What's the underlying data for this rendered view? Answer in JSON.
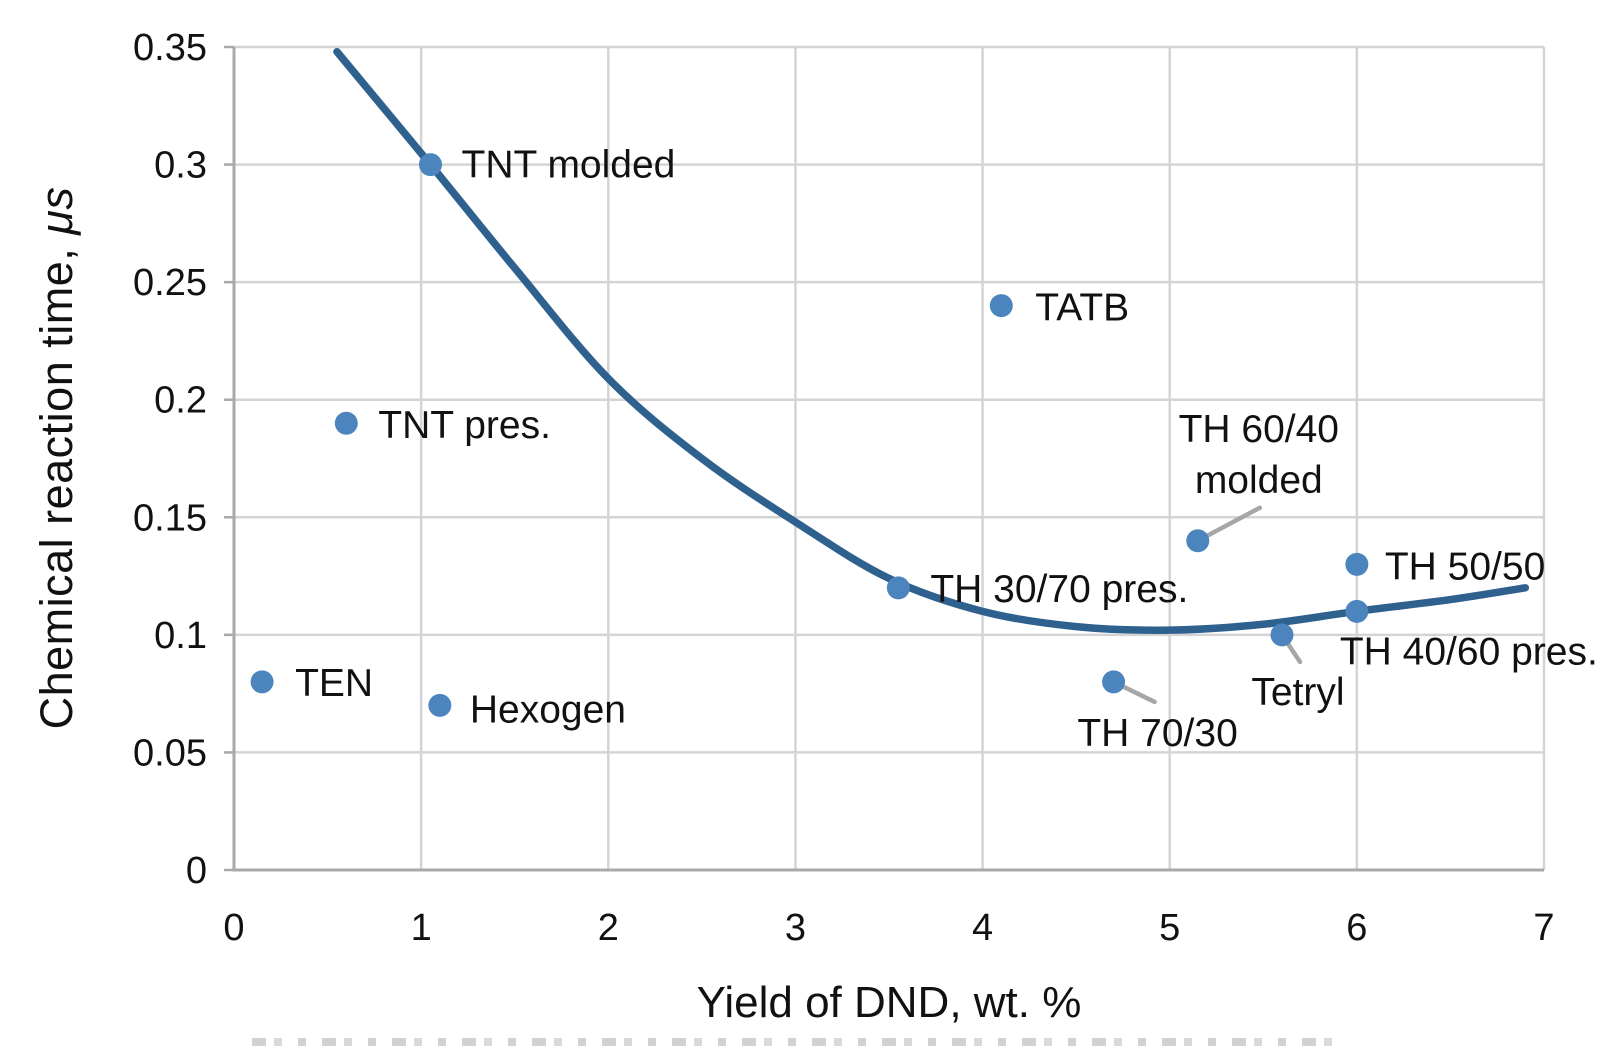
{
  "chart_data": {
    "type": "scatter",
    "title": "",
    "xlabel": "Yield of DND, wt. %",
    "ylabel": "Chemical reaction time, μs",
    "ylabel_main": "Chemical reaction time, ",
    "ylabel_unit": "μs",
    "xlim": [
      0,
      7
    ],
    "ylim": [
      0,
      0.35
    ],
    "x_ticks": [
      0,
      1,
      2,
      3,
      4,
      5,
      6,
      7
    ],
    "x_tick_labels": [
      "0",
      "1",
      "2",
      "3",
      "4",
      "5",
      "6",
      "7"
    ],
    "y_ticks": [
      0,
      0.05,
      0.1,
      0.15,
      0.2,
      0.25,
      0.3,
      0.35
    ],
    "y_tick_labels": [
      "0",
      "0.05",
      "0.1",
      "0.15",
      "0.2",
      "0.25",
      "0.3",
      "0.35"
    ],
    "grid": true,
    "legend": "none",
    "points": [
      {
        "name": "TEN",
        "x": 0.15,
        "y": 0.08,
        "label": [
          "TEN"
        ],
        "anchor": "start",
        "label_offset": [
          33,
          0
        ],
        "leader": null
      },
      {
        "name": "TNT pres.",
        "x": 0.6,
        "y": 0.19,
        "label": [
          "TNT pres."
        ],
        "anchor": "start",
        "label_offset": [
          32,
          1
        ],
        "leader": null
      },
      {
        "name": "TNT molded",
        "x": 1.05,
        "y": 0.3,
        "label": [
          "TNT molded"
        ],
        "anchor": "start",
        "label_offset": [
          31,
          -1
        ],
        "leader": null
      },
      {
        "name": "Hexogen",
        "x": 1.1,
        "y": 0.07,
        "label": [
          "Hexogen"
        ],
        "anchor": "start",
        "label_offset": [
          30,
          3
        ],
        "leader": null
      },
      {
        "name": "TH 30/70 pres.",
        "x": 3.55,
        "y": 0.12,
        "label": [
          "TH 30/70 pres."
        ],
        "anchor": "start",
        "label_offset": [
          32,
          0
        ],
        "leader": null
      },
      {
        "name": "TATB",
        "x": 4.1,
        "y": 0.24,
        "label": [
          "TATB"
        ],
        "anchor": "start",
        "label_offset": [
          34,
          1
        ],
        "leader": null
      },
      {
        "name": "TH 70/30",
        "x": 4.7,
        "y": 0.08,
        "label": [
          "TH 70/30"
        ],
        "anchor": "middle",
        "label_offset": [
          44,
          50
        ],
        "leader": [
          41,
          20
        ]
      },
      {
        "name": "TH 60/40 molded",
        "x": 5.15,
        "y": 0.14,
        "label": [
          "TH 60/40",
          "molded"
        ],
        "anchor": "middle",
        "label_offset": [
          61,
          -113
        ],
        "leader": [
          62,
          -33
        ]
      },
      {
        "name": "Tetryl",
        "x": 5.6,
        "y": 0.1,
        "label": [
          "Tetryl"
        ],
        "anchor": "middle",
        "label_offset": [
          16,
          56
        ],
        "leader": [
          18,
          27
        ]
      },
      {
        "name": "TH 40/60 pres.",
        "x": 6.0,
        "y": 0.11,
        "label": [
          "TH 40/60 pres."
        ],
        "anchor": "start",
        "label_offset": [
          -17,
          39
        ],
        "leader": null
      },
      {
        "name": "TH 50/50",
        "x": 6.0,
        "y": 0.13,
        "label": [
          "TH 50/50"
        ],
        "anchor": "start",
        "label_offset": [
          28,
          1
        ],
        "leader": null
      }
    ],
    "trend": {
      "name": "polynomial-trend-line",
      "x": [
        0.55,
        1.05,
        1.5,
        2.0,
        2.5,
        3.0,
        3.5,
        4.0,
        4.5,
        5.0,
        5.5,
        6.0,
        6.5,
        6.9
      ],
      "y": [
        0.348,
        0.3,
        0.256,
        0.209,
        0.175,
        0.148,
        0.124,
        0.11,
        0.1035,
        0.102,
        0.1045,
        0.11,
        0.115,
        0.12
      ]
    },
    "colors": {
      "point": "#4C84BE",
      "trend": "#2F618F",
      "grid": "#D4D4D4",
      "axis": "#A9A9A9",
      "leader": "#A6A6A6",
      "text": "#111111"
    }
  }
}
